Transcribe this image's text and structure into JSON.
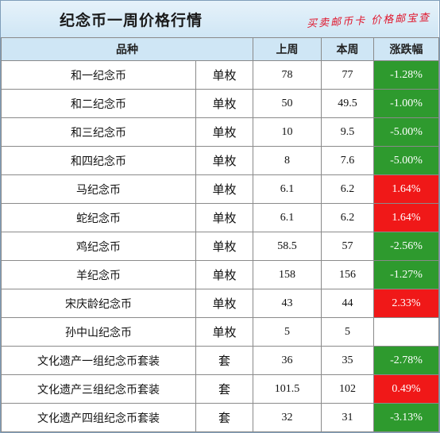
{
  "banner": {
    "title": "纪念币一周价格行情",
    "slogan": "买卖邮币卡 价格邮宝查"
  },
  "colors": {
    "down": "#2e9a2e",
    "up": "#f01818",
    "header_bg": "#cfe6f5"
  },
  "table": {
    "headers": {
      "variety": "品种",
      "last_week": "上周",
      "this_week": "本周",
      "change": "涨跌幅"
    },
    "rows": [
      {
        "name": "和一纪念币",
        "unit": "单枚",
        "last": "78",
        "now": "77",
        "change": "-1.28%",
        "dir": "down"
      },
      {
        "name": "和二纪念币",
        "unit": "单枚",
        "last": "50",
        "now": "49.5",
        "change": "-1.00%",
        "dir": "down"
      },
      {
        "name": "和三纪念币",
        "unit": "单枚",
        "last": "10",
        "now": "9.5",
        "change": "-5.00%",
        "dir": "down"
      },
      {
        "name": "和四纪念币",
        "unit": "单枚",
        "last": "8",
        "now": "7.6",
        "change": "-5.00%",
        "dir": "down"
      },
      {
        "name": "马纪念币",
        "unit": "单枚",
        "last": "6.1",
        "now": "6.2",
        "change": "1.64%",
        "dir": "up"
      },
      {
        "name": "蛇纪念币",
        "unit": "单枚",
        "last": "6.1",
        "now": "6.2",
        "change": "1.64%",
        "dir": "up"
      },
      {
        "name": "鸡纪念币",
        "unit": "单枚",
        "last": "58.5",
        "now": "57",
        "change": "-2.56%",
        "dir": "down"
      },
      {
        "name": "羊纪念币",
        "unit": "单枚",
        "last": "158",
        "now": "156",
        "change": "-1.27%",
        "dir": "down"
      },
      {
        "name": "宋庆龄纪念币",
        "unit": "单枚",
        "last": "43",
        "now": "44",
        "change": "2.33%",
        "dir": "up"
      },
      {
        "name": "孙中山纪念币",
        "unit": "单枚",
        "last": "5",
        "now": "5",
        "change": "",
        "dir": "none"
      },
      {
        "name": "文化遗产一组纪念币套装",
        "unit": "套",
        "last": "36",
        "now": "35",
        "change": "-2.78%",
        "dir": "down"
      },
      {
        "name": "文化遗产三组纪念币套装",
        "unit": "套",
        "last": "101.5",
        "now": "102",
        "change": "0.49%",
        "dir": "up"
      },
      {
        "name": "文化遗产四组纪念币套装",
        "unit": "套",
        "last": "32",
        "now": "31",
        "change": "-3.13%",
        "dir": "down"
      }
    ]
  }
}
